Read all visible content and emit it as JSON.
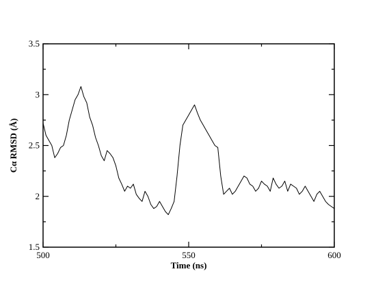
{
  "chart_data": {
    "type": "line",
    "title": "",
    "xlabel": "Time (ns)",
    "ylabel": "Cα RMSD (Å)",
    "xlim": [
      500,
      600
    ],
    "ylim": [
      1.5,
      3.5
    ],
    "x_ticks": [
      500,
      550,
      600
    ],
    "x_minor_ticks": [
      525,
      575
    ],
    "y_ticks": [
      1.5,
      2,
      2.5,
      3,
      3.5
    ],
    "y_minor_ticks": [
      1.75,
      2.25,
      2.75,
      3.25
    ],
    "x_tick_labels": [
      "500",
      "550",
      "600"
    ],
    "y_tick_labels": [
      "1.5",
      "2",
      "2.5",
      "3",
      "3.5"
    ],
    "grid": false,
    "legend": "none",
    "colors": {
      "line": "#000000",
      "axis": "#000000",
      "background": "#ffffff"
    },
    "series": [
      {
        "x": [
          500,
          501,
          502,
          503,
          504,
          505,
          506,
          507,
          508,
          509,
          510,
          511,
          512,
          513,
          514,
          515,
          516,
          517,
          518,
          519,
          520,
          521,
          522,
          523,
          524,
          525,
          526,
          527,
          528,
          529,
          530,
          531,
          532,
          533,
          534,
          535,
          536,
          537,
          538,
          539,
          540,
          541,
          542,
          543,
          544,
          545,
          546,
          547,
          548,
          549,
          550,
          551,
          552,
          553,
          554,
          555,
          556,
          557,
          558,
          559,
          560,
          561,
          562,
          563,
          564,
          565,
          566,
          567,
          568,
          569,
          570,
          571,
          572,
          573,
          574,
          575,
          576,
          577,
          578,
          579,
          580,
          581,
          582,
          583,
          584,
          585,
          586,
          587,
          588,
          589,
          590,
          591,
          592,
          593,
          594,
          595,
          596,
          597,
          598,
          599,
          600
        ],
        "values": [
          2.72,
          2.6,
          2.55,
          2.5,
          2.38,
          2.42,
          2.48,
          2.5,
          2.6,
          2.75,
          2.85,
          2.95,
          3.0,
          3.08,
          2.98,
          2.92,
          2.78,
          2.7,
          2.58,
          2.5,
          2.4,
          2.35,
          2.45,
          2.42,
          2.38,
          2.3,
          2.18,
          2.12,
          2.05,
          2.1,
          2.08,
          2.12,
          2.02,
          1.98,
          1.95,
          2.05,
          2.0,
          1.92,
          1.88,
          1.9,
          1.95,
          1.9,
          1.85,
          1.82,
          1.88,
          1.95,
          2.2,
          2.5,
          2.7,
          2.75,
          2.8,
          2.85,
          2.9,
          2.82,
          2.75,
          2.7,
          2.65,
          2.6,
          2.55,
          2.5,
          2.48,
          2.2,
          2.02,
          2.05,
          2.08,
          2.02,
          2.05,
          2.1,
          2.15,
          2.2,
          2.18,
          2.12,
          2.1,
          2.05,
          2.08,
          2.15,
          2.12,
          2.1,
          2.05,
          2.18,
          2.12,
          2.08,
          2.1,
          2.15,
          2.05,
          2.12,
          2.1,
          2.08,
          2.02,
          2.05,
          2.1,
          2.05,
          2.0,
          1.95,
          2.02,
          2.05,
          2.0,
          1.95,
          1.92,
          1.9,
          1.88
        ]
      }
    ]
  }
}
